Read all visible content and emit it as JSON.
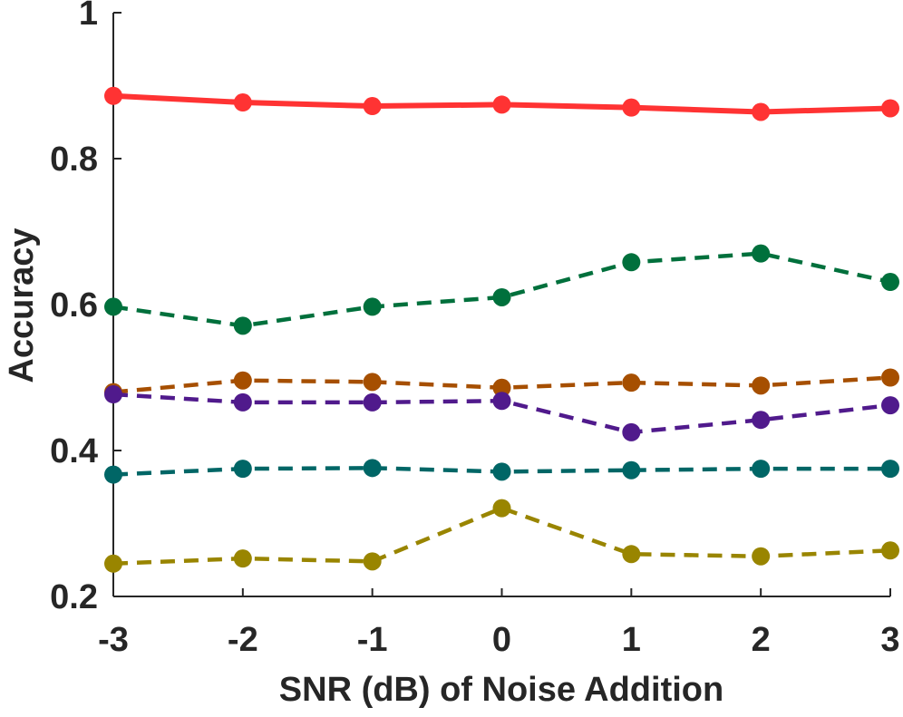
{
  "chart_data": {
    "type": "line",
    "title": "",
    "xlabel": "SNR (dB) of Noise Addition",
    "ylabel": "Accuracy",
    "x": [
      -3,
      -2,
      -1,
      0,
      1,
      2,
      3
    ],
    "x_tick_labels": [
      "-3",
      "-2",
      "-1",
      "0",
      "1",
      "2",
      "3"
    ],
    "y_tick_values": [
      0.2,
      0.4,
      0.6,
      0.8,
      1
    ],
    "y_tick_labels": [
      "0.2",
      "0.4",
      "0.6",
      "0.8",
      "1"
    ],
    "xlim": [
      -3,
      3
    ],
    "ylim": [
      0.2,
      1
    ],
    "grid": false,
    "legend": "none",
    "series": [
      {
        "color": "#ff3333",
        "style": "solid",
        "values": [
          0.886,
          0.877,
          0.872,
          0.874,
          0.87,
          0.864,
          0.869
        ]
      },
      {
        "color": "#00703c",
        "style": "dashed",
        "values": [
          0.597,
          0.571,
          0.597,
          0.61,
          0.658,
          0.67,
          0.631
        ]
      },
      {
        "color": "#a64f00",
        "style": "dashed",
        "values": [
          0.48,
          0.496,
          0.494,
          0.486,
          0.493,
          0.489,
          0.5
        ]
      },
      {
        "color": "#501a8c",
        "style": "dashed",
        "values": [
          0.477,
          0.466,
          0.466,
          0.468,
          0.425,
          0.442,
          0.462
        ]
      },
      {
        "color": "#006666",
        "style": "dashed",
        "values": [
          0.367,
          0.375,
          0.376,
          0.371,
          0.373,
          0.375,
          0.375
        ]
      },
      {
        "color": "#998500",
        "style": "dashed",
        "values": [
          0.245,
          0.252,
          0.248,
          0.321,
          0.258,
          0.255,
          0.263
        ]
      }
    ]
  }
}
